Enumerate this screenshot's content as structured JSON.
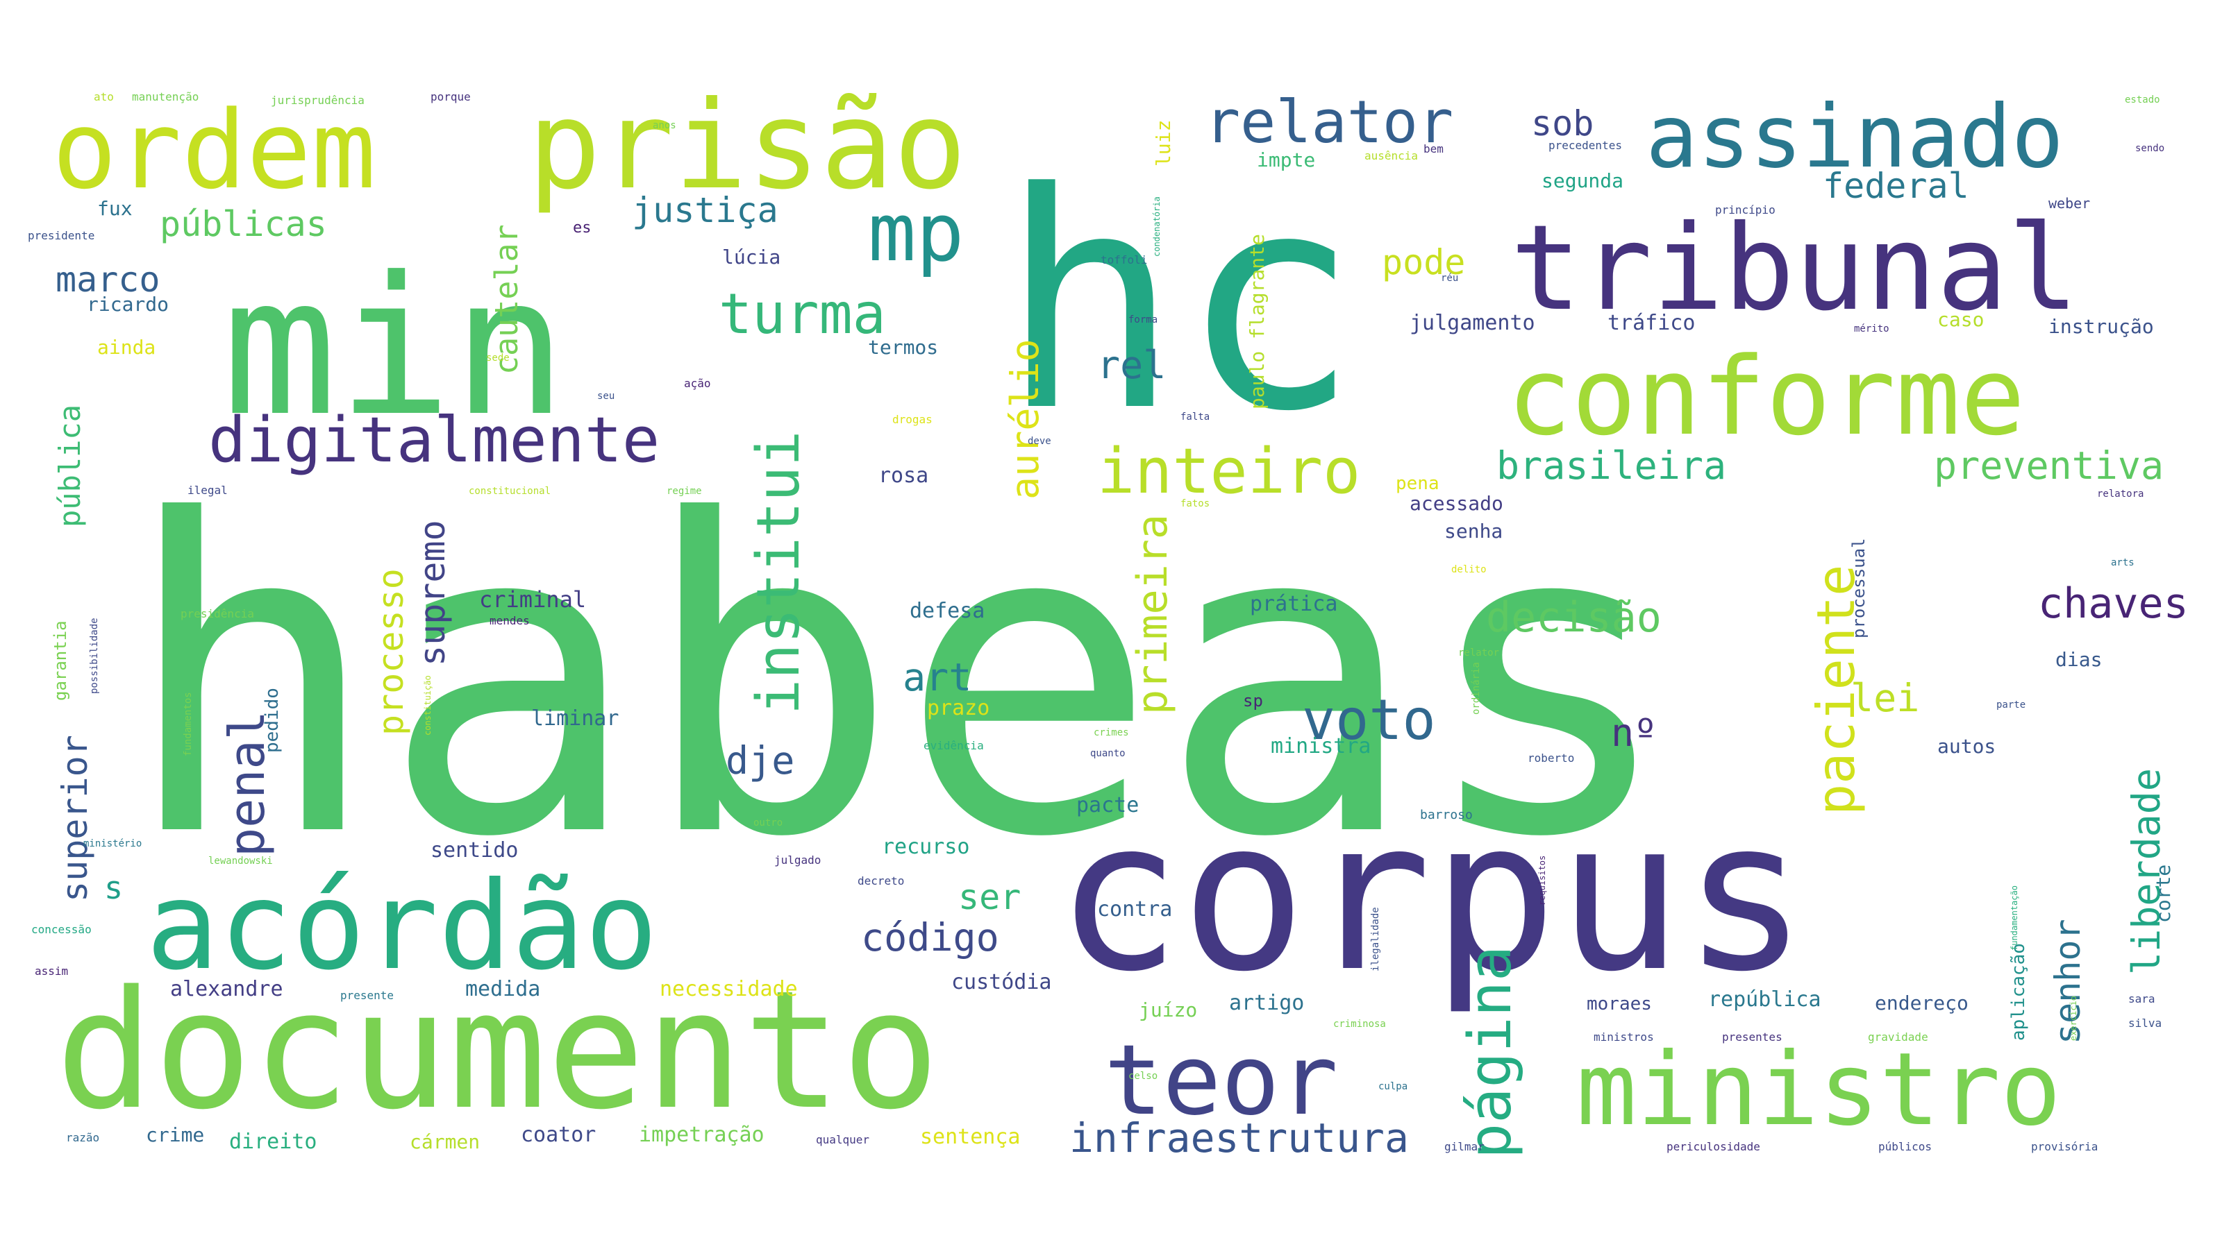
{
  "words": [
    {
      "text": "habeas",
      "color": "#4ec36b"
    },
    {
      "text": "hc",
      "color": "#22a784"
    },
    {
      "text": "corpus",
      "color": "#443983"
    },
    {
      "text": "min",
      "color": "#4ec36b"
    },
    {
      "text": "documento",
      "color": "#7ad151"
    },
    {
      "text": "prisão",
      "color": "#b8de29"
    },
    {
      "text": "tribunal",
      "color": "#46337e"
    },
    {
      "text": "acórdão",
      "color": "#27ad81"
    },
    {
      "text": "ordem",
      "color": "#c5e021"
    },
    {
      "text": "conforme",
      "color": "#a2da37"
    },
    {
      "text": "assinado",
      "color": "#2a788e"
    },
    {
      "text": "ministro",
      "color": "#7ad151"
    },
    {
      "text": "teor",
      "color": "#414487"
    },
    {
      "text": "mp",
      "color": "#21918c"
    },
    {
      "text": "digitalmente",
      "color": "#46337e"
    },
    {
      "text": "relator",
      "color": "#355f8d"
    },
    {
      "text": "inteiro",
      "color": "#b8de29"
    },
    {
      "text": "turma",
      "color": "#35b779"
    },
    {
      "text": "institui",
      "color": "#3bbb75"
    },
    {
      "text": "página",
      "color": "#25ac82"
    },
    {
      "text": "paciente",
      "color": "#d0e11c"
    },
    {
      "text": "voto",
      "color": "#31688e"
    },
    {
      "text": "penal",
      "color": "#3e4989"
    },
    {
      "text": "infraestrutura",
      "color": "#39558c"
    },
    {
      "text": "decisão",
      "color": "#5ec962"
    },
    {
      "text": "chaves",
      "color": "#482475"
    },
    {
      "text": "preventiva",
      "color": "#5ec962"
    },
    {
      "text": "brasileira",
      "color": "#2db27d"
    },
    {
      "text": "primeira",
      "color": "#b8de29"
    },
    {
      "text": "processo",
      "color": "#c5e021"
    },
    {
      "text": "supremo",
      "color": "#414487"
    },
    {
      "text": "superior",
      "color": "#39568c"
    },
    {
      "text": "liberdade",
      "color": "#21a685"
    },
    {
      "text": "senhor",
      "color": "#2c728e"
    },
    {
      "text": "aurélio",
      "color": "#dde318"
    },
    {
      "text": "justiça",
      "color": "#2a788e"
    },
    {
      "text": "públicas",
      "color": "#5ec962"
    },
    {
      "text": "federal",
      "color": "#2a788e"
    },
    {
      "text": "cautelar",
      "color": "#75d054"
    },
    {
      "text": "pública",
      "color": "#3dbc74"
    },
    {
      "text": "código",
      "color": "#3e4a89"
    },
    {
      "text": "art",
      "color": "#26828e"
    },
    {
      "text": "dje",
      "color": "#38598c"
    },
    {
      "text": "marco",
      "color": "#355f8d"
    },
    {
      "text": "rel",
      "color": "#2c728e"
    },
    {
      "text": "pode",
      "color": "#c8e020"
    },
    {
      "text": "sob",
      "color": "#3f4788"
    },
    {
      "text": "ser",
      "color": "#35b779"
    },
    {
      "text": "lei",
      "color": "#bddf26"
    },
    {
      "text": "nº",
      "color": "#46337e"
    },
    {
      "text": "s",
      "color": "#1f9e89"
    },
    {
      "text": "ricardo",
      "color": "#31688e"
    },
    {
      "text": "lúcia",
      "color": "#404588"
    },
    {
      "text": "termos",
      "color": "#2f6c8e"
    },
    {
      "text": "ainda",
      "color": "#dde318"
    },
    {
      "text": "julgamento",
      "color": "#3f4788"
    },
    {
      "text": "tráfico",
      "color": "#3e4989"
    },
    {
      "text": "instrução",
      "color": "#3b528b"
    },
    {
      "text": "caso",
      "color": "#b5de2b"
    },
    {
      "text": "segunda",
      "color": "#20a486"
    },
    {
      "text": "luiz",
      "color": "#dde318"
    },
    {
      "text": "impte",
      "color": "#3bbb75"
    },
    {
      "text": "paulo flagrante",
      "color": "#b5de2b"
    },
    {
      "text": "fux",
      "color": "#2c728e"
    },
    {
      "text": "presidente",
      "color": "#3b528b"
    },
    {
      "text": "es",
      "color": "#482173"
    },
    {
      "text": "weber",
      "color": "#3f4788"
    },
    {
      "text": "sendo",
      "color": "#46327e"
    },
    {
      "text": "estado",
      "color": "#75d054"
    },
    {
      "text": "acessado",
      "color": "#433e85"
    },
    {
      "text": "senha",
      "color": "#3e4989"
    },
    {
      "text": "processual",
      "color": "#3b528b"
    },
    {
      "text": "prática",
      "color": "#2c728e"
    },
    {
      "text": "criminal",
      "color": "#433e85"
    },
    {
      "text": "defesa",
      "color": "#2e6e8e"
    },
    {
      "text": "rosa",
      "color": "#3f4788"
    },
    {
      "text": "pena",
      "color": "#dde318"
    },
    {
      "text": "dias",
      "color": "#38598c"
    },
    {
      "text": "garantia",
      "color": "#7ad151"
    },
    {
      "text": "pedido",
      "color": "#2e6e8e"
    },
    {
      "text": "liminar",
      "color": "#31688e"
    },
    {
      "text": "sp",
      "color": "#482475"
    },
    {
      "text": "ministra",
      "color": "#22a884"
    },
    {
      "text": "autos",
      "color": "#3b528b"
    },
    {
      "text": "pacte",
      "color": "#2a768e"
    },
    {
      "text": "recurso",
      "color": "#20a386"
    },
    {
      "text": "prazo",
      "color": "#dde318"
    },
    {
      "text": "sentido",
      "color": "#3e4989"
    },
    {
      "text": "contra",
      "color": "#355f8d"
    },
    {
      "text": "alexandre",
      "color": "#433e85"
    },
    {
      "text": "medida",
      "color": "#2e6e8e"
    },
    {
      "text": "necessidade",
      "color": "#dde318"
    },
    {
      "text": "custódia",
      "color": "#3f4788"
    },
    {
      "text": "artigo",
      "color": "#2c728e"
    },
    {
      "text": "juízo",
      "color": "#75d054"
    },
    {
      "text": "moraes",
      "color": "#3e4989"
    },
    {
      "text": "república",
      "color": "#2a788e"
    },
    {
      "text": "endereço",
      "color": "#38598c"
    },
    {
      "text": "aplicação",
      "color": "#21918c"
    },
    {
      "text": "corte",
      "color": "#2a788e"
    },
    {
      "text": "crime",
      "color": "#31688e"
    },
    {
      "text": "direito",
      "color": "#29af7f"
    },
    {
      "text": "cármen",
      "color": "#b5de2b"
    },
    {
      "text": "coator",
      "color": "#3e4989"
    },
    {
      "text": "impetração",
      "color": "#75d054"
    },
    {
      "text": "sentença",
      "color": "#dde318"
    },
    {
      "text": "qualquer",
      "color": "#443983"
    },
    {
      "text": "gilmar",
      "color": "#3e4989"
    },
    {
      "text": "periculosidade",
      "color": "#46337e"
    },
    {
      "text": "públicos",
      "color": "#3e4989"
    },
    {
      "text": "provisória",
      "color": "#3b528b"
    },
    {
      "text": "razão",
      "color": "#31688e"
    },
    {
      "text": "ministros",
      "color": "#3e4989"
    },
    {
      "text": "presentes",
      "color": "#46337e"
    },
    {
      "text": "gravidade",
      "color": "#7ad151"
    },
    {
      "text": "silva",
      "color": "#3b528b"
    },
    {
      "text": "sara",
      "color": "#3e4989"
    },
    {
      "text": "jurisprudência",
      "color": "#75d054"
    },
    {
      "text": "porque",
      "color": "#46337e"
    },
    {
      "text": "ato",
      "color": "#b5de2b"
    },
    {
      "text": "manutenção",
      "color": "#75d054"
    },
    {
      "text": "precedentes",
      "color": "#3b528b"
    },
    {
      "text": "princípio",
      "color": "#3e4989"
    },
    {
      "text": "toffoli",
      "color": "#2c728e"
    },
    {
      "text": "mérito",
      "color": "#46337e"
    },
    {
      "text": "réu",
      "color": "#3b528b"
    },
    {
      "text": "anos",
      "color": "#75d054"
    },
    {
      "text": "ausência",
      "color": "#b5de2b"
    },
    {
      "text": "drogas",
      "color": "#dde318"
    },
    {
      "text": "ação",
      "color": "#482475"
    },
    {
      "text": "ilegal",
      "color": "#3e4989"
    },
    {
      "text": "constitucional",
      "color": "#b5de2b"
    },
    {
      "text": "regime",
      "color": "#75d054"
    },
    {
      "text": "falta",
      "color": "#3e4989"
    },
    {
      "text": "deve",
      "color": "#3b528b"
    },
    {
      "text": "relatora",
      "color": "#46337e"
    },
    {
      "text": "presidência",
      "color": "#75d054"
    },
    {
      "text": "mendes",
      "color": "#482475"
    },
    {
      "text": "delito",
      "color": "#dde318"
    },
    {
      "text": "relator",
      "color": "#75d054"
    },
    {
      "text": "fundamentos",
      "color": "#7ad151"
    },
    {
      "text": "possibilidade",
      "color": "#3e4989"
    },
    {
      "text": "ministério",
      "color": "#2a788e"
    },
    {
      "text": "lewandowski",
      "color": "#75d054"
    },
    {
      "text": "concessão",
      "color": "#22a884"
    },
    {
      "text": "assim",
      "color": "#482475"
    },
    {
      "text": "presente",
      "color": "#2a788e"
    },
    {
      "text": "crimes",
      "color": "#7ad151"
    },
    {
      "text": "evidência",
      "color": "#29af7f"
    },
    {
      "text": "quanto",
      "color": "#3e4989"
    },
    {
      "text": "roberto",
      "color": "#3b528b"
    },
    {
      "text": "outro",
      "color": "#75d054"
    },
    {
      "text": "julgado",
      "color": "#46337e"
    },
    {
      "text": "decreto",
      "color": "#3e4989"
    },
    {
      "text": "barroso",
      "color": "#2c728e"
    },
    {
      "text": "ilegalidade",
      "color": "#3b528b"
    },
    {
      "text": "requisitos",
      "color": "#482475"
    },
    {
      "text": "culpa",
      "color": "#2c728e"
    },
    {
      "text": "criminosa",
      "color": "#7ad151"
    },
    {
      "text": "celso",
      "color": "#75d054"
    },
    {
      "text": "fatos",
      "color": "#b5de2b"
    },
    {
      "text": "ordinária",
      "color": "#75d054"
    },
    {
      "text": "parte",
      "color": "#3b528b"
    },
    {
      "text": "forma",
      "color": "#3e4989"
    },
    {
      "text": "arts",
      "color": "#2c728e"
    },
    {
      "text": "condenatória",
      "color": "#29af7f"
    },
    {
      "text": "sede",
      "color": "#b5de2b"
    },
    {
      "text": "seu",
      "color": "#3b528b"
    },
    {
      "text": "fundamentação",
      "color": "#29af7f"
    },
    {
      "text": "exercício",
      "color": "#75d054"
    },
    {
      "text": "constituição",
      "color": "#b5de2b"
    },
    {
      "text": "bem",
      "color": "#46337e"
    }
  ]
}
